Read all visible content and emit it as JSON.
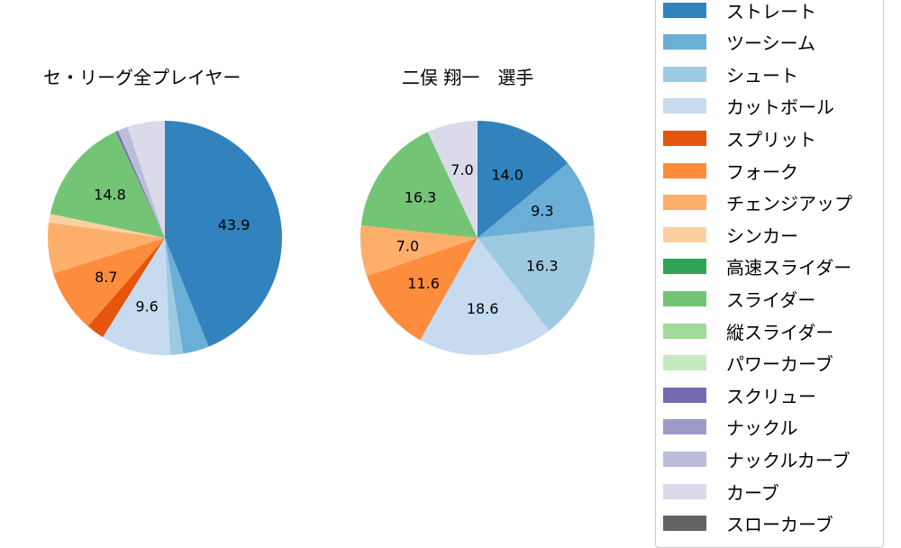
{
  "chart_data": [
    {
      "type": "pie",
      "title": "セ・リーグ全プレイヤー",
      "start_angle": 90,
      "direction": "clockwise",
      "slices": [
        {
          "label": "ストレート",
          "value": 43.9,
          "color": "#3182bd",
          "show_label": true
        },
        {
          "label": "ツーシーム",
          "value": 3.6,
          "color": "#6baed6",
          "show_label": false
        },
        {
          "label": "シュート",
          "value": 1.8,
          "color": "#9ecae1",
          "show_label": false
        },
        {
          "label": "カットボール",
          "value": 9.6,
          "color": "#c6dbef",
          "show_label": true
        },
        {
          "label": "スプリット",
          "value": 2.5,
          "color": "#e6550d",
          "show_label": false
        },
        {
          "label": "フォーク",
          "value": 8.7,
          "color": "#fd8d3c",
          "show_label": true
        },
        {
          "label": "チェンジアップ",
          "value": 7.0,
          "color": "#fdae6b",
          "show_label": false
        },
        {
          "label": "シンカー",
          "value": 1.2,
          "color": "#fdd0a2",
          "show_label": false
        },
        {
          "label": "スライダー",
          "value": 14.8,
          "color": "#74c476",
          "show_label": true
        },
        {
          "label": "スクリュー",
          "value": 0.3,
          "color": "#756bb1",
          "show_label": false
        },
        {
          "label": "ナックルカーブ",
          "value": 1.4,
          "color": "#bcbddc",
          "show_label": false
        },
        {
          "label": "カーブ",
          "value": 5.2,
          "color": "#dadaeb",
          "show_label": false
        }
      ]
    },
    {
      "type": "pie",
      "title": "二俣 翔一　選手",
      "start_angle": 90,
      "direction": "clockwise",
      "slices": [
        {
          "label": "ストレート",
          "value": 14.0,
          "color": "#3182bd",
          "show_label": true
        },
        {
          "label": "ツーシーム",
          "value": 9.3,
          "color": "#6baed6",
          "show_label": true
        },
        {
          "label": "シュート",
          "value": 16.3,
          "color": "#9ecae1",
          "show_label": true
        },
        {
          "label": "カットボール",
          "value": 18.6,
          "color": "#c6dbef",
          "show_label": true
        },
        {
          "label": "フォーク",
          "value": 11.6,
          "color": "#fd8d3c",
          "show_label": true
        },
        {
          "label": "チェンジアップ",
          "value": 7.0,
          "color": "#fdae6b",
          "show_label": true
        },
        {
          "label": "スライダー",
          "value": 16.3,
          "color": "#74c476",
          "show_label": true
        },
        {
          "label": "カーブ",
          "value": 7.0,
          "color": "#dadaeb",
          "show_label": true
        }
      ]
    }
  ],
  "legend": {
    "items": [
      {
        "label": "ストレート",
        "color": "#3182bd"
      },
      {
        "label": "ツーシーム",
        "color": "#6baed6"
      },
      {
        "label": "シュート",
        "color": "#9ecae1"
      },
      {
        "label": "カットボール",
        "color": "#c6dbef"
      },
      {
        "label": "スプリット",
        "color": "#e6550d"
      },
      {
        "label": "フォーク",
        "color": "#fd8d3c"
      },
      {
        "label": "チェンジアップ",
        "color": "#fdae6b"
      },
      {
        "label": "シンカー",
        "color": "#fdd0a2"
      },
      {
        "label": "高速スライダー",
        "color": "#31a354"
      },
      {
        "label": "スライダー",
        "color": "#74c476"
      },
      {
        "label": "縦スライダー",
        "color": "#a1d99b"
      },
      {
        "label": "パワーカーブ",
        "color": "#c7e9c0"
      },
      {
        "label": "スクリュー",
        "color": "#756bb1"
      },
      {
        "label": "ナックル",
        "color": "#9e9ac8"
      },
      {
        "label": "ナックルカーブ",
        "color": "#bcbddc"
      },
      {
        "label": "カーブ",
        "color": "#dadaeb"
      },
      {
        "label": "スローカーブ",
        "color": "#636363"
      }
    ]
  }
}
